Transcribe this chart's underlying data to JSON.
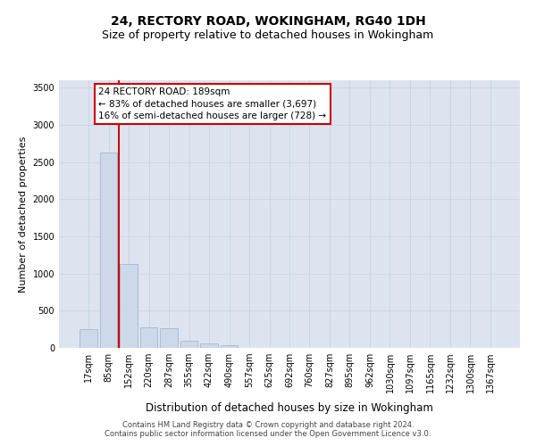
{
  "title1": "24, RECTORY ROAD, WOKINGHAM, RG40 1DH",
  "title2": "Size of property relative to detached houses in Wokingham",
  "xlabel": "Distribution of detached houses by size in Wokingham",
  "ylabel": "Number of detached properties",
  "bar_labels": [
    "17sqm",
    "85sqm",
    "152sqm",
    "220sqm",
    "287sqm",
    "355sqm",
    "422sqm",
    "490sqm",
    "557sqm",
    "625sqm",
    "692sqm",
    "760sqm",
    "827sqm",
    "895sqm",
    "962sqm",
    "1030sqm",
    "1097sqm",
    "1165sqm",
    "1232sqm",
    "1300sqm",
    "1367sqm"
  ],
  "bar_values": [
    255,
    2630,
    1130,
    280,
    265,
    100,
    55,
    35,
    0,
    0,
    0,
    0,
    0,
    0,
    0,
    0,
    0,
    0,
    0,
    0,
    0
  ],
  "bar_color": "#cdd8e8",
  "bar_edgecolor": "#9ab0cc",
  "vline_color": "#cc0000",
  "vline_x_index": 2,
  "annotation_text": "24 RECTORY ROAD: 189sqm\n← 83% of detached houses are smaller (3,697)\n16% of semi-detached houses are larger (728) →",
  "annotation_box_color": "#cc0000",
  "ylim": [
    0,
    3600
  ],
  "yticks": [
    0,
    500,
    1000,
    1500,
    2000,
    2500,
    3000,
    3500
  ],
  "grid_color": "#c8d4e4",
  "background_color": "#dde4f0",
  "footer1": "Contains HM Land Registry data © Crown copyright and database right 2024.",
  "footer2": "Contains public sector information licensed under the Open Government Licence v3.0.",
  "title_fontsize": 10,
  "subtitle_fontsize": 9,
  "tick_fontsize": 7,
  "ylabel_fontsize": 8,
  "xlabel_fontsize": 8.5,
  "annotation_fontsize": 7.5,
  "footer_fontsize": 6
}
